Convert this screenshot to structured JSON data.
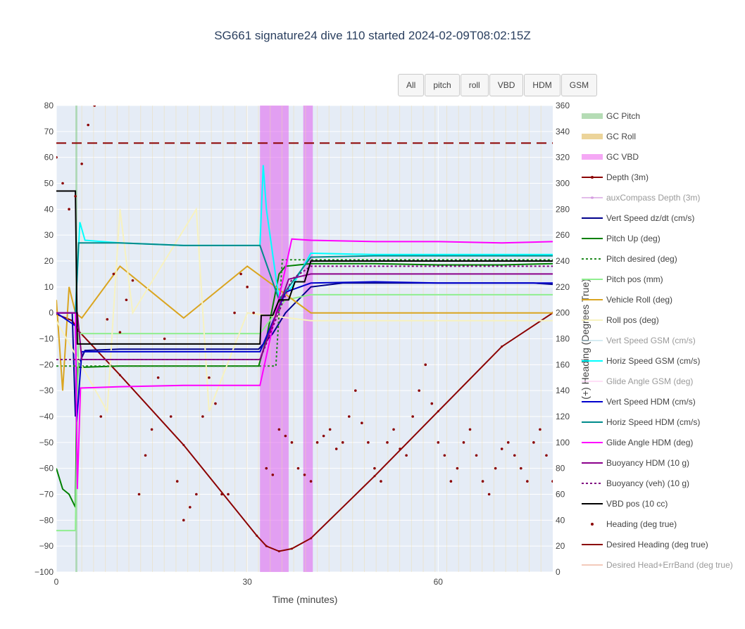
{
  "chart_data": {
    "type": "line",
    "title": "SG661 signature24 dive 110 started 2024-02-09T08:02:15Z",
    "xlabel": "Time (minutes)",
    "ylabel": "",
    "y2label": "(+) Heading (Degrees True)",
    "xlim": [
      0,
      78
    ],
    "ylim": [
      -100,
      80
    ],
    "y2lim": [
      0,
      360
    ],
    "x_ticks": [
      "0",
      "30",
      "60"
    ],
    "y_ticks": [
      "80",
      "70",
      "60",
      "50",
      "40",
      "30",
      "20",
      "10",
      "0",
      "−10",
      "−20",
      "−30",
      "−40",
      "−50",
      "−60",
      "−70",
      "−80",
      "−90",
      "−100"
    ],
    "y2_ticks": [
      "360",
      "340",
      "320",
      "300",
      "280",
      "260",
      "240",
      "220",
      "200",
      "180",
      "160",
      "140",
      "120",
      "100",
      "80",
      "60",
      "40",
      "20",
      "0"
    ],
    "grid": true,
    "legend_position": "right",
    "bands": [
      {
        "name": "GC Pitch",
        "spans": [
          [
            3.0,
            3.3
          ]
        ],
        "color": "#7fc97f"
      },
      {
        "name": "GC VBD",
        "spans": [
          [
            32.0,
            36.5
          ],
          [
            38.8,
            40.3
          ]
        ],
        "color": "#e060ef"
      }
    ],
    "series": [
      {
        "name": "GC Pitch",
        "color": "#b5dcb5",
        "style": "band",
        "visible": true
      },
      {
        "name": "GC Roll",
        "color": "#ecd49a",
        "style": "band",
        "visible": true
      },
      {
        "name": "GC VBD",
        "color": "#f5a8f5",
        "style": "band",
        "visible": true
      },
      {
        "name": "Depth (3m)",
        "color": "#8b0000",
        "style": "line-marker",
        "visible": true,
        "axis": "y",
        "x": [
          0,
          2.5,
          3.5,
          10,
          20,
          31.5,
          33,
          35,
          37,
          40,
          50,
          60,
          70,
          78
        ],
        "y": [
          -0.5,
          -3,
          -7,
          -24,
          -51,
          -86,
          -90,
          -92,
          -91,
          -87,
          -63,
          -38,
          -13,
          0
        ]
      },
      {
        "name": "auxCompass Depth (3m)",
        "color": "#c77dd7",
        "style": "line-marker",
        "visible": false
      },
      {
        "name": "Vert Speed dz/dt (cm/s)",
        "color": "#00008b",
        "style": "line",
        "visible": true,
        "axis": "y",
        "x": [
          0,
          2.5,
          3.0,
          3.5,
          4.5,
          10,
          20,
          31.8,
          34,
          36,
          40,
          45,
          55,
          65,
          75,
          78
        ],
        "y": [
          0,
          0,
          -40,
          -20,
          -14.5,
          -14,
          -14,
          -14,
          -8,
          0,
          10,
          11.5,
          11.5,
          11.5,
          11.5,
          11
        ]
      },
      {
        "name": "Pitch Up (deg)",
        "color": "#008000",
        "style": "line",
        "visible": true,
        "axis": "y",
        "x": [
          0,
          1.0,
          2.0,
          3.0,
          3.3,
          4,
          10,
          20,
          31.8,
          33,
          35,
          36,
          40,
          50,
          60,
          70,
          78
        ],
        "y": [
          -60,
          -68,
          -70,
          -75,
          -21,
          -21,
          -20.5,
          -20.5,
          -20.5,
          -10,
          15,
          18,
          19,
          19,
          18.5,
          18.5,
          19
        ]
      },
      {
        "name": "Pitch desired (deg)",
        "color": "#228b22",
        "style": "dotted",
        "visible": true,
        "axis": "y",
        "x": [
          0,
          34.5,
          35.5,
          78
        ],
        "y": [
          -20.5,
          -20.5,
          20.5,
          20.5
        ]
      },
      {
        "name": "Pitch pos (mm)",
        "color": "#90ee90",
        "style": "line",
        "visible": true,
        "axis": "y",
        "x": [
          0,
          3,
          3.5,
          32,
          36,
          40,
          78
        ],
        "y": [
          -84,
          -84,
          -8,
          -8,
          5,
          7,
          7
        ]
      },
      {
        "name": "Vehicle Roll (deg)",
        "color": "#daa520",
        "style": "line",
        "visible": true,
        "axis": "y",
        "x": [
          0,
          1,
          2,
          3,
          4,
          10,
          20,
          30,
          40,
          50,
          60,
          70,
          78
        ],
        "y": [
          5,
          -30,
          10,
          0,
          -2,
          18,
          -2,
          18,
          0,
          0,
          0,
          0,
          0
        ]
      },
      {
        "name": "Roll pos (deg)",
        "color": "#f7f2c0",
        "style": "line",
        "visible": true,
        "axis": "y",
        "x": [
          0,
          8,
          10,
          12,
          22,
          24,
          30,
          40,
          60,
          78
        ],
        "y": [
          -3,
          -38,
          40,
          0,
          40,
          -38,
          0,
          -3,
          -3,
          -3
        ]
      },
      {
        "name": "Vert Speed GSM (cm/s)",
        "color": "#add8e6",
        "style": "line",
        "visible": false
      },
      {
        "name": "Horiz Speed GSM (cm/s)",
        "color": "#00ffff",
        "style": "line",
        "visible": true,
        "axis": "y",
        "x": [
          0,
          3,
          3.7,
          4.5,
          10,
          20,
          32,
          32.5,
          33,
          35,
          37,
          40,
          50,
          60,
          70,
          78
        ],
        "y": [
          0,
          0,
          35,
          28,
          27,
          26,
          26,
          57,
          40,
          5,
          10,
          23,
          22.5,
          22.5,
          22.5,
          22.5
        ]
      },
      {
        "name": "Glide Angle GSM (deg)",
        "color": "#ffc0f0",
        "style": "line",
        "visible": false
      },
      {
        "name": "Vert Speed HDM (cm/s)",
        "color": "#0000cd",
        "style": "line",
        "visible": true,
        "axis": "y",
        "x": [
          0,
          3,
          3.2,
          4,
          10,
          20,
          32,
          36,
          40,
          50,
          60,
          70,
          78
        ],
        "y": [
          0,
          -5,
          -42,
          -15,
          -15,
          -15,
          -15,
          8,
          11.5,
          12,
          11.5,
          11.5,
          11.5
        ]
      },
      {
        "name": "Horiz Speed HDM (cm/s)",
        "color": "#008b8b",
        "style": "line",
        "visible": true,
        "axis": "y",
        "x": [
          0,
          3,
          3.5,
          10,
          20,
          32,
          35,
          40,
          50,
          60,
          70,
          78
        ],
        "y": [
          0,
          0,
          27,
          27,
          26,
          26,
          5,
          21.5,
          22,
          22,
          22,
          22
        ]
      },
      {
        "name": "Glide Angle HDM (deg)",
        "color": "#ff00ff",
        "style": "line",
        "visible": true,
        "axis": "y",
        "x": [
          0,
          3,
          3.3,
          3.8,
          10,
          20,
          32,
          37,
          40,
          50,
          60,
          70,
          78
        ],
        "y": [
          0,
          0,
          -68,
          -29,
          -28.5,
          -28,
          -28,
          28.5,
          28,
          27.5,
          27.5,
          27,
          27.5
        ]
      },
      {
        "name": "Buoyancy HDM (10 g)",
        "color": "#8b008b",
        "style": "line",
        "visible": true,
        "axis": "y",
        "x": [
          0,
          3.3,
          4,
          10,
          20,
          32,
          36.5,
          40,
          60,
          78
        ],
        "y": [
          0,
          0,
          -18,
          -18,
          -18,
          -18,
          13,
          15,
          15,
          15
        ]
      },
      {
        "name": "Buoyancy (veh) (10 g)",
        "color": "#800080",
        "style": "dotted",
        "visible": true,
        "axis": "y",
        "x": [
          0,
          3.3,
          32,
          37,
          40,
          78
        ],
        "y": [
          -18,
          -18,
          -18,
          13,
          18,
          18
        ]
      },
      {
        "name": "VBD pos (10 cc)",
        "color": "#000000",
        "style": "line",
        "visible": true,
        "axis": "y",
        "x": [
          0,
          3,
          3.3,
          32,
          32.2,
          34,
          35,
          36.5,
          37.5,
          39,
          40,
          78
        ],
        "y": [
          47,
          47,
          -12,
          -12,
          -1,
          -1,
          5,
          5,
          12,
          12,
          20,
          20
        ]
      },
      {
        "name": "Heading (deg true)",
        "color": "#8b0000",
        "style": "markers",
        "visible": true,
        "axis": "y2",
        "x": [
          0,
          1,
          2,
          3,
          4,
          5,
          6,
          7,
          8,
          9,
          10,
          11,
          12,
          13,
          14,
          15,
          16,
          17,
          18,
          19,
          20,
          21,
          22,
          23,
          24,
          25,
          26,
          27,
          28,
          29,
          30,
          31,
          33,
          34,
          35,
          36,
          37,
          38,
          39,
          40,
          41,
          42,
          43,
          44,
          45,
          46,
          47,
          48,
          49,
          50,
          51,
          52,
          53,
          54,
          55,
          56,
          57,
          58,
          59,
          60,
          61,
          62,
          63,
          64,
          65,
          66,
          67,
          68,
          69,
          70,
          71,
          72,
          73,
          74,
          75,
          76,
          77,
          78
        ],
        "y": [
          320,
          300,
          280,
          290,
          315,
          345,
          360,
          120,
          195,
          230,
          185,
          210,
          225,
          60,
          90,
          110,
          150,
          180,
          120,
          70,
          40,
          50,
          60,
          120,
          150,
          130,
          60,
          60,
          200,
          230,
          220,
          200,
          80,
          75,
          110,
          105,
          100,
          80,
          75,
          70,
          100,
          105,
          110,
          95,
          100,
          120,
          140,
          115,
          100,
          80,
          70,
          100,
          110,
          95,
          90,
          120,
          140,
          160,
          130,
          100,
          90,
          70,
          80,
          100,
          110,
          90,
          70,
          60,
          80,
          95,
          100,
          90,
          80,
          70,
          100,
          110,
          90,
          70
        ]
      },
      {
        "name": "Desired Heading (deg true)",
        "color": "#8b0000",
        "style": "dashed",
        "visible": true,
        "axis": "y2",
        "x": [
          0,
          78
        ],
        "y": [
          331,
          331
        ]
      },
      {
        "name": "Desired Head+ErrBand (deg true)",
        "color": "#e9967a",
        "style": "dashed",
        "visible": false
      }
    ]
  },
  "buttons": [
    "All",
    "pitch",
    "roll",
    "VBD",
    "HDM",
    "GSM"
  ]
}
